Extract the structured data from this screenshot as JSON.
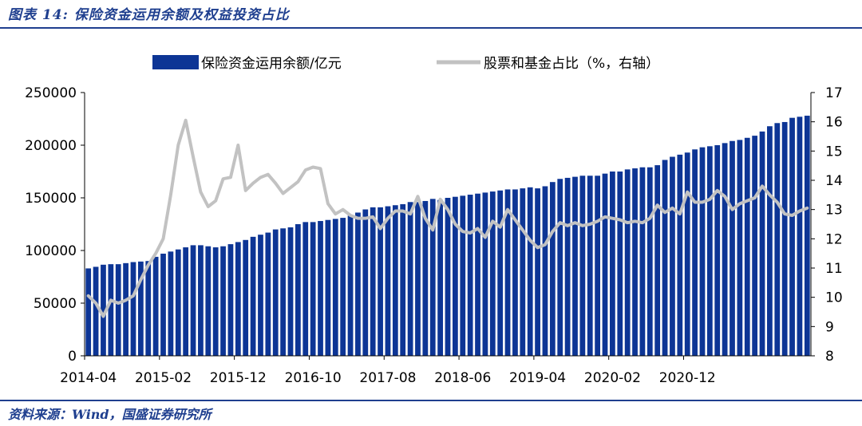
{
  "figure_title": "图表 14:  保险资金运用余额及权益投资占比",
  "source_note": "资料来源：Wind，国盛证券研究所",
  "colors": {
    "bar": "#0d3595",
    "line": "#c2c2c2",
    "title": "#1f3f8f"
  },
  "chart_data": {
    "type": "bar",
    "title": "",
    "xlabel": "",
    "ylabel": "",
    "y2label": "",
    "ylim": [
      0,
      250000
    ],
    "y2lim": [
      8,
      17
    ],
    "yticks": [
      "0",
      "50000",
      "100000",
      "150000",
      "200000",
      "250000"
    ],
    "y2ticks": [
      "8",
      "9",
      "10",
      "11",
      "12",
      "13",
      "14",
      "15",
      "16",
      "17"
    ],
    "xticks": [
      "2014-04",
      "2015-02",
      "2015-12",
      "2016-10",
      "2017-08",
      "2018-06",
      "2019-04",
      "2020-02",
      "2020-12"
    ],
    "grid": false,
    "legend_position": "top",
    "start_month": "2014-04",
    "series": [
      {
        "name": "保险资金运用余额/亿元",
        "kind": "bar",
        "axis": "left",
        "values": [
          83000,
          84500,
          86500,
          87000,
          87000,
          88000,
          89000,
          89500,
          90000,
          94000,
          97000,
          99000,
          101000,
          103000,
          105000,
          105000,
          104000,
          103000,
          104000,
          106000,
          108000,
          110000,
          113000,
          115000,
          117000,
          120000,
          121000,
          122000,
          125000,
          127000,
          127000,
          128000,
          129000,
          130000,
          131000,
          133000,
          136000,
          139000,
          141000,
          141000,
          142000,
          143000,
          144000,
          146000,
          146000,
          147000,
          149000,
          148000,
          150000,
          151000,
          152000,
          153000,
          154000,
          155000,
          156000,
          157000,
          158000,
          158000,
          159000,
          160000,
          159000,
          161000,
          165000,
          168000,
          169000,
          170000,
          171000,
          171000,
          171000,
          173000,
          175000,
          175000,
          177000,
          178000,
          179000,
          179000,
          181000,
          186000,
          189000,
          191000,
          193000,
          196000,
          198000,
          199000,
          200000,
          202000,
          204000,
          205000,
          207000,
          209000,
          213000,
          218000,
          221000,
          222000,
          226000,
          227000,
          228000
        ]
      },
      {
        "name": "股票和基金占比（%，右轴）",
        "kind": "line",
        "axis": "right",
        "values": [
          10.05,
          9.8,
          9.35,
          9.9,
          9.8,
          9.9,
          10.05,
          10.6,
          11.1,
          11.5,
          12.0,
          13.5,
          15.2,
          16.05,
          14.8,
          13.6,
          13.1,
          13.3,
          14.05,
          14.1,
          15.2,
          13.65,
          13.9,
          14.1,
          14.2,
          13.9,
          13.55,
          13.75,
          13.95,
          14.35,
          14.45,
          14.4,
          13.2,
          12.85,
          13.0,
          12.8,
          12.7,
          12.7,
          12.75,
          12.35,
          12.7,
          12.95,
          12.95,
          12.85,
          13.45,
          12.7,
          12.3,
          13.35,
          13.0,
          12.5,
          12.25,
          12.2,
          12.35,
          12.05,
          12.6,
          12.4,
          13.0,
          12.65,
          12.3,
          11.95,
          11.7,
          11.8,
          12.25,
          12.55,
          12.45,
          12.55,
          12.45,
          12.5,
          12.6,
          12.75,
          12.7,
          12.65,
          12.55,
          12.6,
          12.55,
          12.7,
          13.15,
          12.9,
          13.05,
          12.85,
          13.6,
          13.25,
          13.25,
          13.35,
          13.65,
          13.45,
          13.0,
          13.2,
          13.3,
          13.4,
          13.8,
          13.5,
          13.25,
          12.85,
          12.8,
          12.95,
          13.05
        ]
      }
    ]
  }
}
